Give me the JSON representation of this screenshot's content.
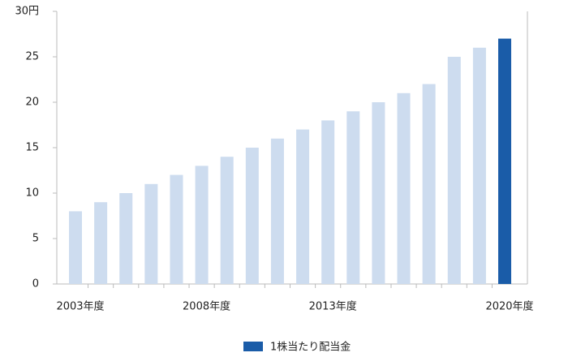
{
  "chart_data": {
    "type": "bar",
    "categories": [
      "2003年度",
      null,
      null,
      null,
      null,
      "2008年度",
      null,
      null,
      null,
      null,
      "2013年度",
      null,
      null,
      null,
      null,
      null,
      null,
      "2020年度"
    ],
    "series": [
      {
        "name": "1株当たり配当金",
        "color": "#1a5ca8",
        "values": [
          8,
          9,
          10,
          11,
          12,
          13,
          14,
          15,
          16,
          17,
          18,
          19,
          20,
          21,
          22,
          25,
          26,
          27
        ],
        "bar_colors": [
          "#cddcef",
          "#cddcef",
          "#cddcef",
          "#cddcef",
          "#cddcef",
          "#cddcef",
          "#cddcef",
          "#cddcef",
          "#cddcef",
          "#cddcef",
          "#cddcef",
          "#cddcef",
          "#cddcef",
          "#cddcef",
          "#cddcef",
          "#cddcef",
          "#cddcef",
          "#1a5ca8"
        ]
      }
    ],
    "ylim": [
      0,
      30
    ],
    "yticks": [
      0,
      5,
      10,
      15,
      20,
      25,
      {
        "value": 30,
        "label": "30円"
      }
    ],
    "grid": false
  }
}
